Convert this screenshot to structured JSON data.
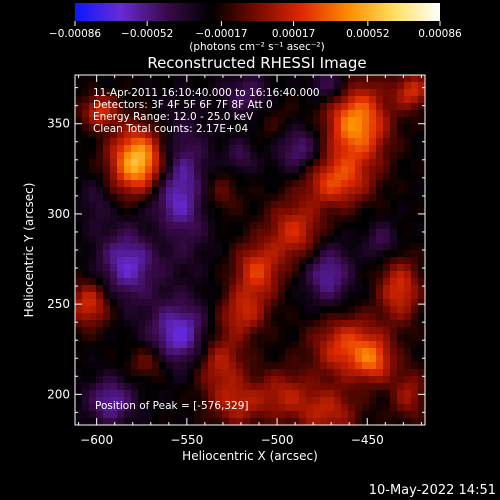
{
  "chart_data": {
    "type": "heatmap",
    "title": "Reconstructed RHESSI Image",
    "xlabel": "Heliocentric X (arcsec)",
    "ylabel": "Heliocentric Y (arcsec)",
    "xlim": [
      -612,
      -418
    ],
    "ylim": [
      183,
      377
    ],
    "x_ticks": [
      -600,
      -550,
      -500,
      -450
    ],
    "x_tick_labels": [
      "−600",
      "−550",
      "−500",
      "−450"
    ],
    "y_ticks": [
      200,
      250,
      300,
      350
    ],
    "y_tick_labels": [
      "200",
      "250",
      "300",
      "350"
    ],
    "colorbar": {
      "min": -0.00086,
      "max": 0.00086,
      "ticks": [
        -0.00086,
        -0.00052,
        -0.00017,
        0.00017,
        0.00052,
        0.00086
      ],
      "tick_labels": [
        "−0.00086",
        "−0.00052",
        "−0.00017",
        "0.00017",
        "0.00052",
        "0.00086"
      ],
      "unit_label": "(photons cm⁻² s⁻¹ asec⁻²)",
      "colors": [
        "#0b18ff",
        "#6a2ad6",
        "#3a0a4a",
        "#000000",
        "#7a0a00",
        "#e02a00",
        "#ff8c00",
        "#ffe060",
        "#ffffff"
      ]
    },
    "annotations": [
      "11-Apr-2011 16:10:40.000 to 16:16:40.000",
      "Detectors: 3F 4F 5F 6F 7F 8F  Att 0",
      "Energy Range: 12.0 - 25.0 keV",
      "Clean     Total counts: 2.17E+04"
    ],
    "peak_label": "Position of Peak = [-576,329]",
    "peak": [
      -576,
      329
    ],
    "blobs": [
      {
        "x": -576,
        "y": 329,
        "sx": 11,
        "sy": 13,
        "v": 0.00086
      },
      {
        "x": -598,
        "y": 357,
        "sx": 7,
        "sy": 6,
        "v": 0.00042
      },
      {
        "x": -532,
        "y": 312,
        "sx": 8,
        "sy": 9,
        "v": 0.0002
      },
      {
        "x": -456,
        "y": 350,
        "sx": 12,
        "sy": 16,
        "v": 0.00066
      },
      {
        "x": -425,
        "y": 368,
        "sx": 7,
        "sy": 7,
        "v": 0.0004
      },
      {
        "x": -468,
        "y": 318,
        "sx": 13,
        "sy": 10,
        "v": 0.00045
      },
      {
        "x": -490,
        "y": 290,
        "sx": 11,
        "sy": 12,
        "v": 0.0004
      },
      {
        "x": -511,
        "y": 268,
        "sx": 9,
        "sy": 11,
        "v": 0.00044
      },
      {
        "x": -519,
        "y": 245,
        "sx": 9,
        "sy": 9,
        "v": 0.00034
      },
      {
        "x": -532,
        "y": 218,
        "sx": 10,
        "sy": 13,
        "v": 0.00036
      },
      {
        "x": -522,
        "y": 194,
        "sx": 10,
        "sy": 9,
        "v": 0.0003
      },
      {
        "x": -497,
        "y": 200,
        "sx": 11,
        "sy": 10,
        "v": 0.0003
      },
      {
        "x": -472,
        "y": 190,
        "sx": 12,
        "sy": 10,
        "v": 0.00034
      },
      {
        "x": -460,
        "y": 226,
        "sx": 14,
        "sy": 12,
        "v": 0.00048
      },
      {
        "x": -446,
        "y": 218,
        "sx": 7,
        "sy": 8,
        "v": 0.00034
      },
      {
        "x": -432,
        "y": 258,
        "sx": 8,
        "sy": 12,
        "v": 0.00042
      },
      {
        "x": -427,
        "y": 200,
        "sx": 7,
        "sy": 10,
        "v": 0.00028
      },
      {
        "x": -604,
        "y": 250,
        "sx": 8,
        "sy": 9,
        "v": 0.00042
      },
      {
        "x": -571,
        "y": 218,
        "sx": 8,
        "sy": 7,
        "v": 0.00024
      },
      {
        "x": -565,
        "y": 289,
        "sx": 8,
        "sy": 8,
        "v": 0.00016
      },
      {
        "x": -499,
        "y": 349,
        "sx": 10,
        "sy": 10,
        "v": 0.00012
      },
      {
        "x": -556,
        "y": 314,
        "sx": 12,
        "sy": 24,
        "v": -0.00045
      },
      {
        "x": -583,
        "y": 272,
        "sx": 11,
        "sy": 14,
        "v": -0.0004
      },
      {
        "x": -554,
        "y": 233,
        "sx": 12,
        "sy": 13,
        "v": -0.00045
      },
      {
        "x": -592,
        "y": 196,
        "sx": 9,
        "sy": 9,
        "v": -0.00036
      },
      {
        "x": -472,
        "y": 267,
        "sx": 9,
        "sy": 12,
        "v": -0.00036
      },
      {
        "x": -488,
        "y": 336,
        "sx": 9,
        "sy": 10,
        "v": -0.00034
      },
      {
        "x": -470,
        "y": 371,
        "sx": 8,
        "sy": 7,
        "v": -0.0003
      },
      {
        "x": -517,
        "y": 366,
        "sx": 9,
        "sy": 8,
        "v": -0.00025
      },
      {
        "x": -442,
        "y": 285,
        "sx": 6,
        "sy": 7,
        "v": -0.00022
      },
      {
        "x": -520,
        "y": 332,
        "sx": 6,
        "sy": 7,
        "v": -0.0002
      },
      {
        "x": -600,
        "y": 307,
        "sx": 6,
        "sy": 10,
        "v": -0.00015
      }
    ]
  },
  "timestamp": "10-May-2022 14:51"
}
